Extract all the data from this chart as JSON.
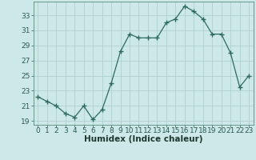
{
  "x": [
    0,
    1,
    2,
    3,
    4,
    5,
    6,
    7,
    8,
    9,
    10,
    11,
    12,
    13,
    14,
    15,
    16,
    17,
    18,
    19,
    20,
    21,
    22,
    23
  ],
  "y": [
    22.2,
    21.6,
    21.0,
    20.0,
    19.5,
    21.0,
    19.2,
    20.5,
    24.0,
    28.2,
    30.5,
    30.0,
    30.0,
    30.0,
    32.0,
    32.5,
    34.2,
    33.5,
    32.5,
    30.5,
    30.5,
    28.0,
    23.5,
    25.0
  ],
  "line_color": "#2e6b5e",
  "marker": "+",
  "marker_size": 4,
  "bg_color": "#cce8e8",
  "grid_color": "#aacccc",
  "xlabel": "Humidex (Indice chaleur)",
  "ylim": [
    18.5,
    34.8
  ],
  "yticks": [
    19,
    21,
    23,
    25,
    27,
    29,
    31,
    33
  ],
  "xlim": [
    -0.5,
    23.5
  ],
  "xticks": [
    0,
    1,
    2,
    3,
    4,
    5,
    6,
    7,
    8,
    9,
    10,
    11,
    12,
    13,
    14,
    15,
    16,
    17,
    18,
    19,
    20,
    21,
    22,
    23
  ],
  "xlabel_fontsize": 7.5,
  "tick_fontsize": 6.5
}
